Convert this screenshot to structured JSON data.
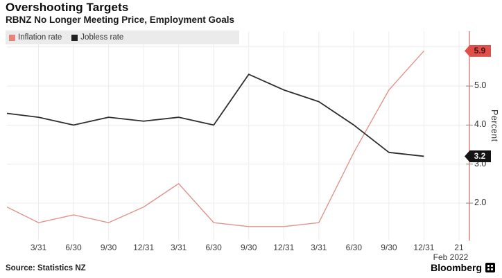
{
  "header": {
    "title": "Overshooting Targets",
    "subtitle": "RBNZ No Longer Meeting Price, Employment Goals"
  },
  "legend": {
    "items": [
      {
        "label": "Inflation rate",
        "color": "#e8itatea"
      },
      {
        "label": "Jobless rate",
        "color": "#1f1f1f"
      }
    ]
  },
  "chart_data": {
    "type": "line",
    "title": "Overshooting Targets",
    "subtitle": "RBNZ No Longer Meeting Price, Employment Goals",
    "x_tick_labels": [
      "3/31",
      "6/30",
      "9/30",
      "12/31",
      "3/31",
      "6/30",
      "9/30",
      "12/31",
      "3/31",
      "6/30",
      "9/30",
      "12/31",
      "21"
    ],
    "x_last_sub_label": "Feb 2022",
    "first_point_at_left_edge": true,
    "series": [
      {
        "name": "Inflation rate",
        "color": "#e2938c",
        "values": [
          1.9,
          1.5,
          1.7,
          1.5,
          1.9,
          2.5,
          1.5,
          1.4,
          1.4,
          1.5,
          3.3,
          4.9,
          5.9
        ],
        "last_label": "5.9",
        "badge": {
          "bg": "#e0504a",
          "text": "#43100d"
        }
      },
      {
        "name": "Jobless rate",
        "color": "#2d2d2d",
        "values": [
          4.3,
          4.2,
          4.0,
          4.2,
          4.1,
          4.2,
          4.0,
          5.3,
          4.9,
          4.6,
          4.0,
          3.3,
          3.2
        ],
        "last_label": "3.2",
        "badge": {
          "bg": "#131313",
          "text": "#efefef"
        }
      }
    ],
    "y_ticks": [
      "2.0",
      "3.0",
      "4.0",
      "5.0"
    ],
    "ylabel": "Percent",
    "ylim": [
      1.0,
      6.4
    ],
    "grid": true,
    "legend_position": "top-left",
    "axis_line_color": "#de8d86"
  },
  "footer": {
    "source": "Source: Statistics NZ",
    "brand": "Bloomberg"
  }
}
